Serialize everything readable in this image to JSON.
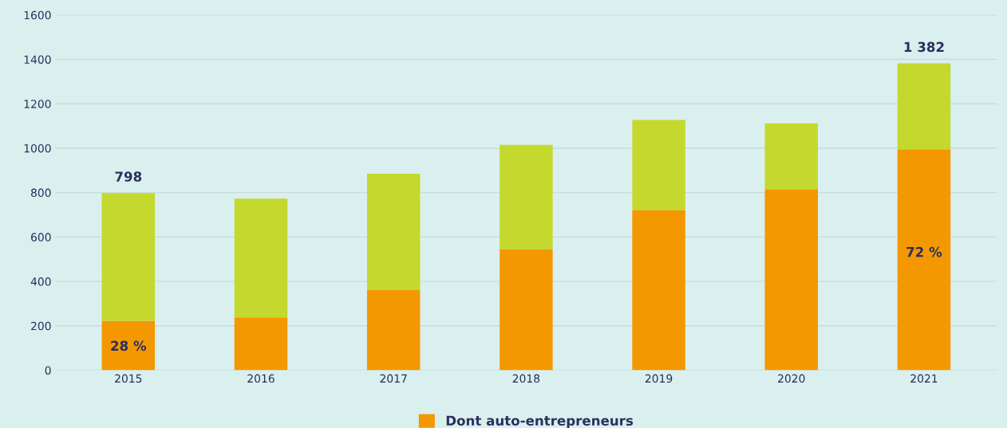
{
  "chart_data": {
    "type": "bar",
    "stacked": true,
    "categories": [
      "2015",
      "2016",
      "2017",
      "2018",
      "2019",
      "2020",
      "2021"
    ],
    "series": [
      {
        "name": "Dont auto-entrepreneurs",
        "color": "#f39800",
        "values": [
          223,
          238,
          361,
          545,
          722,
          813,
          995
        ]
      },
      {
        "color": "#c5d82e",
        "values": [
          575,
          535,
          524,
          470,
          405,
          299,
          387
        ]
      }
    ],
    "annotations": [
      "28 %",
      "72 %"
    ],
    "totals": [
      "798",
      null,
      null,
      null,
      null,
      null,
      "1 382"
    ],
    "ylim": [
      0,
      1600
    ],
    "yticks": [
      0,
      200,
      400,
      600,
      800,
      1000,
      1200,
      1400,
      1600
    ],
    "grid": "y",
    "legend": "bottom"
  }
}
